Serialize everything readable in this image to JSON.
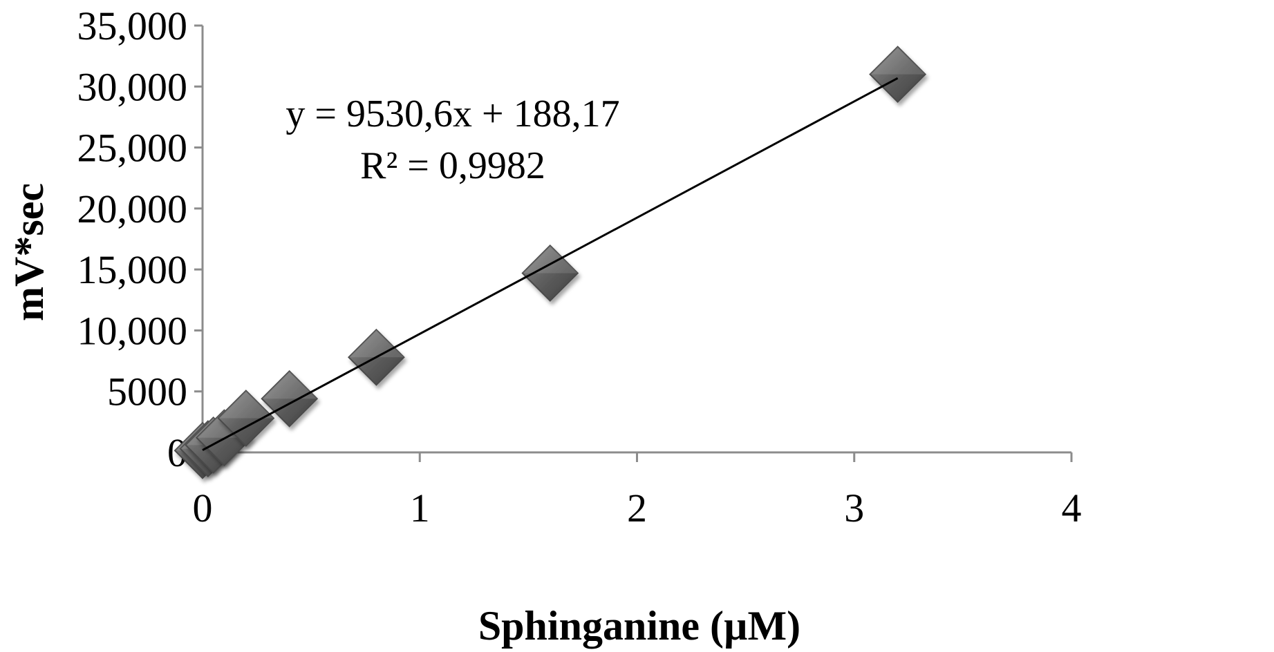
{
  "chart_data": {
    "type": "scatter",
    "xlabel": "Sphinganine (µM)",
    "ylabel": "mV*sec",
    "xlim": [
      0,
      4
    ],
    "ylim": [
      0,
      35000
    ],
    "x_ticks": [
      0,
      1,
      2,
      3,
      4
    ],
    "x_tick_labels": [
      "0",
      "1",
      "2",
      "3",
      "4"
    ],
    "y_ticks": [
      0,
      5000,
      10000,
      15000,
      20000,
      25000,
      30000,
      35000
    ],
    "y_tick_labels": [
      "0",
      "5000",
      "10,000",
      "15,000",
      "20,000",
      "25,000",
      "30,000",
      "35,000"
    ],
    "grid": false,
    "marker": "diamond",
    "colors": {
      "marker": "#5a5a5a",
      "marker_light": "#9a9a9a",
      "marker_dark": "#3c3c3c",
      "trendline": "#000000",
      "axis": "#8c8c8c"
    },
    "series": [
      {
        "x": [
          0.0,
          0.025,
          0.05,
          0.1,
          0.2,
          0.4,
          0.8,
          1.6,
          3.2
        ],
        "y": [
          150,
          300,
          600,
          1200,
          2800,
          4400,
          7800,
          14700,
          31000
        ]
      }
    ],
    "trendline": {
      "type": "linear",
      "slope": 9530.6,
      "intercept": 188.17,
      "x_range": [
        0,
        3.2
      ],
      "equation": "y = 9530,6x + 188,17",
      "r_squared": "R² = 0,9982"
    }
  }
}
